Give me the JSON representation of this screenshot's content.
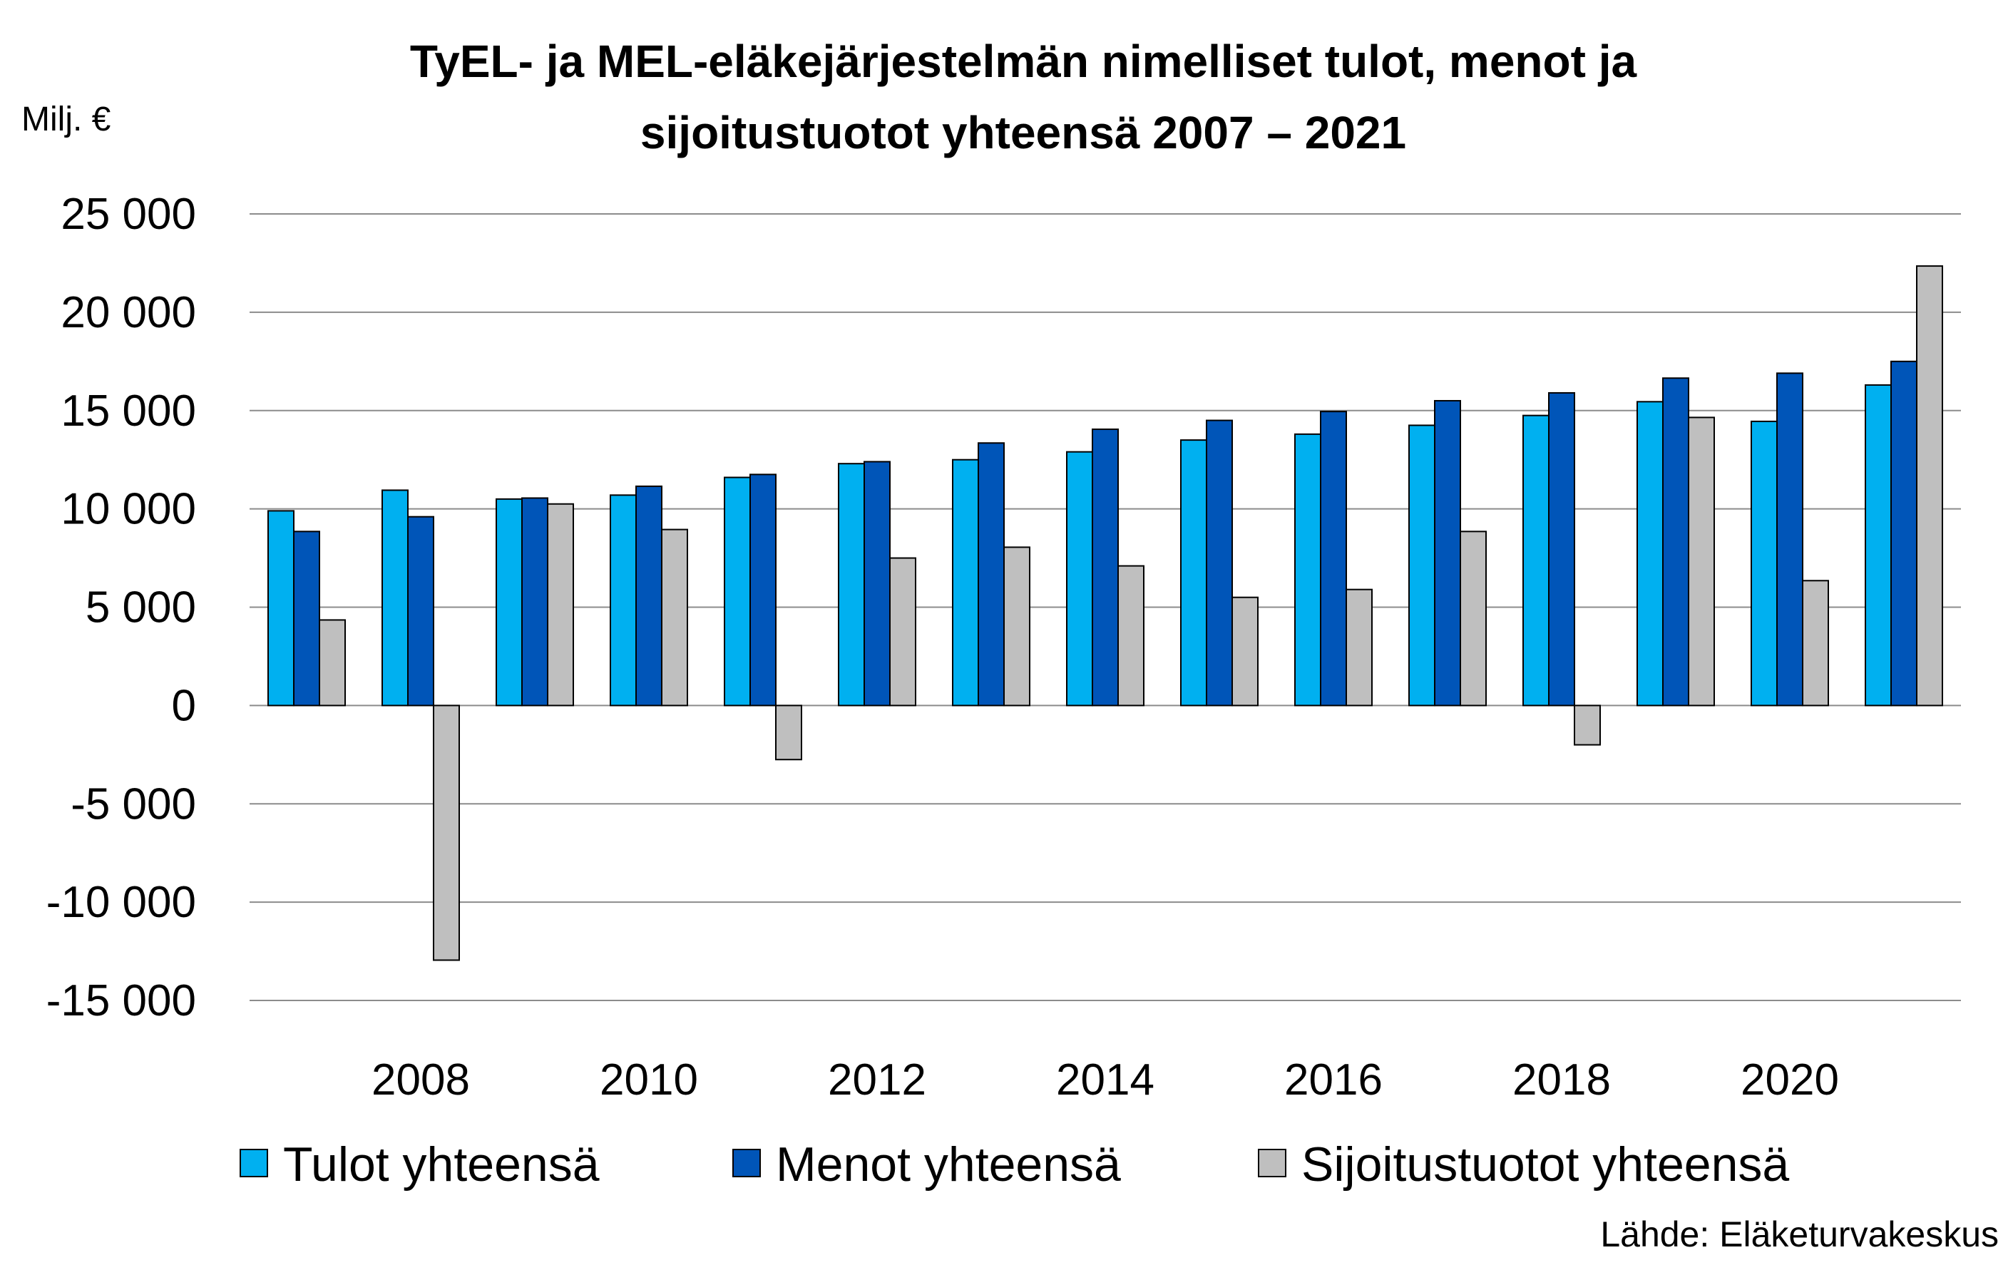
{
  "chart_data": {
    "type": "bar",
    "title_line1": "TyEL- ja MEL-eläkejärjestelmän nimelliset tulot, menot ja",
    "title_line2": "sijoitustuotot yhteensä 2007 – 2021",
    "ylabel": "Milj. €",
    "source": "Lähde: Eläketurvakeskus",
    "ylim": [
      -15000,
      25000
    ],
    "ytick_values": [
      25000,
      20000,
      15000,
      10000,
      5000,
      0,
      -5000,
      -10000,
      -15000
    ],
    "ytick_labels": [
      "25 000",
      "20 000",
      "15 000",
      "10 000",
      "5 000",
      "0",
      "-5 000",
      "-10 000",
      "-15 000"
    ],
    "categories": [
      "2007",
      "2008",
      "2009",
      "2010",
      "2011",
      "2012",
      "2013",
      "2014",
      "2015",
      "2016",
      "2017",
      "2018",
      "2019",
      "2020",
      "2021"
    ],
    "xtick_labels_shown": [
      "2008",
      "2010",
      "2012",
      "2014",
      "2016",
      "2018",
      "2020"
    ],
    "grid": true,
    "legend_position": "bottom",
    "series": [
      {
        "name": "Tulot yhteensä",
        "color": "#00B0F0",
        "values": [
          9900,
          10950,
          10500,
          10700,
          11600,
          12300,
          12500,
          12900,
          13500,
          13800,
          14250,
          14750,
          15450,
          14450,
          16300
        ]
      },
      {
        "name": "Menot yhteensä",
        "color": "#0055B8",
        "values": [
          8850,
          9600,
          10550,
          11150,
          11750,
          12400,
          13350,
          14050,
          14500,
          14950,
          15500,
          15900,
          16650,
          16900,
          17500
        ]
      },
      {
        "name": "Sijoitustuotot yhteensä",
        "color": "#BFBFBF",
        "values": [
          4350,
          -12950,
          10250,
          8950,
          -2750,
          7500,
          8050,
          7100,
          5500,
          5900,
          8850,
          -2000,
          14650,
          6350,
          22350
        ]
      }
    ]
  }
}
